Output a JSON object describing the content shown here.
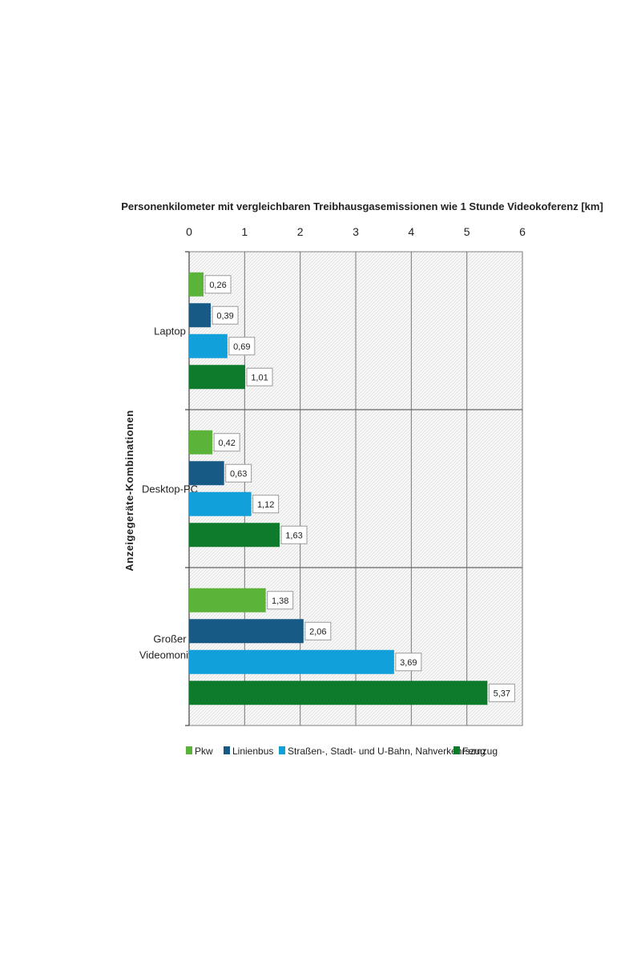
{
  "chart_data": {
    "type": "bar",
    "orientation": "horizontal",
    "title": "",
    "xlabel": "Personenkilometer mit vergleichbaren Treibhausgasemissionen  wie 1 Stunde Videokoferenz [km]",
    "ylabel": "Anzeigegeräte-Kombinationen",
    "xlim": [
      0,
      6
    ],
    "xticks": [
      "0",
      "1",
      "2",
      "3",
      "4",
      "5",
      "6"
    ],
    "x_axis_position": "top",
    "grid": true,
    "legend_position": "bottom",
    "categories": [
      {
        "label_lines": [
          "Laptop"
        ]
      },
      {
        "label_lines": [
          "Desktop-PC"
        ]
      },
      {
        "label_lines": [
          "Großer",
          "Videomonitor"
        ]
      }
    ],
    "series": [
      {
        "name": "Pkw",
        "color": "#5bb33a",
        "values": [
          0.26,
          0.42,
          1.38
        ],
        "labels": [
          "0,26",
          "0,42",
          "1,38"
        ]
      },
      {
        "name": "Linienbus",
        "color": "#175a86",
        "values": [
          0.39,
          0.63,
          2.06
        ],
        "labels": [
          "0,39",
          "0,63",
          "2,06"
        ]
      },
      {
        "name": "Straßen-, Stadt- und U-Bahn, Nahverkehrszug",
        "color": "#12a0da",
        "values": [
          0.69,
          1.12,
          3.69
        ],
        "labels": [
          "0,69",
          "1,12",
          "3,69"
        ]
      },
      {
        "name": "Fernzug",
        "color": "#0e7a2c",
        "values": [
          1.01,
          1.63,
          5.37
        ],
        "labels": [
          "1,01",
          "1,63",
          "5,37"
        ]
      }
    ]
  }
}
